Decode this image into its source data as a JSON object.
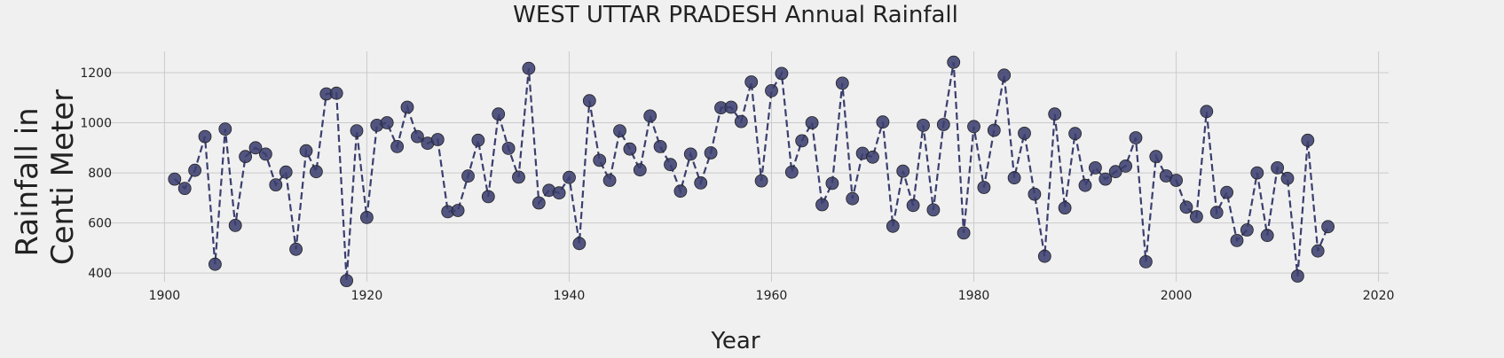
{
  "chart_data": {
    "type": "line",
    "title": "WEST UTTAR PRADESH Annual Rainfall",
    "xlabel": "Year",
    "ylabel_lines": [
      "Rainfall in",
      "Centi Meter"
    ],
    "xlim": [
      1894,
      2021
    ],
    "ylim": [
      365,
      1285
    ],
    "x_ticks": [
      1900,
      1920,
      1940,
      1960,
      1980,
      2000,
      2020
    ],
    "y_ticks": [
      400,
      600,
      800,
      1000,
      1200
    ],
    "grid": true,
    "legend": "none",
    "line_style": "dashed",
    "marker": "circle",
    "series_color": "#3b3f6e",
    "x": [
      1901,
      1902,
      1903,
      1904,
      1905,
      1906,
      1907,
      1908,
      1909,
      1910,
      1911,
      1912,
      1913,
      1914,
      1915,
      1916,
      1917,
      1918,
      1919,
      1920,
      1921,
      1922,
      1923,
      1924,
      1925,
      1926,
      1927,
      1928,
      1929,
      1930,
      1931,
      1932,
      1933,
      1934,
      1935,
      1936,
      1937,
      1938,
      1939,
      1940,
      1941,
      1942,
      1943,
      1944,
      1945,
      1946,
      1947,
      1948,
      1949,
      1950,
      1951,
      1952,
      1953,
      1954,
      1955,
      1956,
      1957,
      1958,
      1959,
      1960,
      1961,
      1962,
      1963,
      1964,
      1965,
      1966,
      1967,
      1968,
      1969,
      1970,
      1971,
      1972,
      1973,
      1974,
      1975,
      1976,
      1977,
      1978,
      1979,
      1980,
      1981,
      1982,
      1983,
      1984,
      1985,
      1986,
      1987,
      1988,
      1989,
      1990,
      1991,
      1992,
      1993,
      1994,
      1995,
      1996,
      1997,
      1998,
      1999,
      2000,
      2001,
      2002,
      2003,
      2004,
      2005,
      2006,
      2007,
      2008,
      2009,
      2010,
      2011,
      2012,
      2013,
      2014,
      2015
    ],
    "y": [
      775,
      738,
      810,
      945,
      435,
      975,
      590,
      865,
      900,
      875,
      752,
      803,
      495,
      888,
      805,
      1115,
      1118,
      370,
      968,
      622,
      990,
      1000,
      905,
      1062,
      945,
      918,
      933,
      645,
      650,
      787,
      930,
      705,
      1035,
      898,
      783,
      1217,
      680,
      730,
      720,
      782,
      518,
      1088,
      850,
      770,
      968,
      895,
      812,
      1027,
      905,
      833,
      727,
      875,
      760,
      880,
      1060,
      1062,
      1005,
      1163,
      768,
      1128,
      1197,
      803,
      928,
      1000,
      673,
      758,
      1158,
      697,
      878,
      863,
      1003,
      587,
      807,
      670,
      990,
      652,
      993,
      1242,
      560,
      985,
      742,
      970,
      1190,
      780,
      958,
      715,
      467,
      1035,
      660,
      957,
      750,
      820,
      775,
      805,
      827,
      940,
      445,
      865,
      788,
      770,
      663,
      625,
      1045,
      642,
      722,
      530,
      572,
      800,
      550,
      820,
      778,
      388,
      930,
      488,
      585
    ]
  }
}
